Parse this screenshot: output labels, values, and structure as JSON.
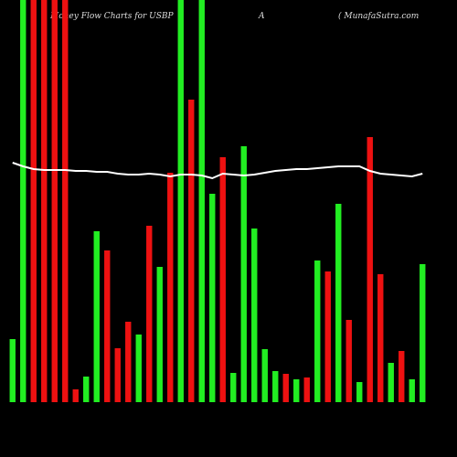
{
  "chart_data": {
    "type": "bar",
    "title": "Money Flow  Charts for USBP",
    "subtitle": "A",
    "source": "( MunafaSutra.com",
    "ylim": [
      0,
      440
    ],
    "background": "#000000",
    "line_color": "#ffffff",
    "series": [
      {
        "name": "Money Flow",
        "values": [
          69,
          440,
          440,
          440,
          440,
          440,
          14,
          28,
          187,
          166,
          59,
          88,
          74,
          193,
          148,
          251,
          440,
          331,
          440,
          228,
          268,
          32,
          280,
          190,
          58,
          34,
          31,
          25,
          27,
          155,
          143,
          217,
          90,
          22,
          290,
          140,
          43,
          56,
          25,
          151
        ],
        "colors": [
          "#22ee22",
          "#22ee22",
          "#ee1111",
          "#ee1111",
          "#ee1111",
          "#ee1111",
          "#ee1111",
          "#22ee22",
          "#22ee22",
          "#ee1111",
          "#ee1111",
          "#ee1111",
          "#22ee22",
          "#ee1111",
          "#22ee22",
          "#ee1111",
          "#22ee22",
          "#ee1111",
          "#22ee22",
          "#22ee22",
          "#ee1111",
          "#22ee22",
          "#22ee22",
          "#22ee22",
          "#22ee22",
          "#22ee22",
          "#ee1111",
          "#22ee22",
          "#ee1111",
          "#22ee22",
          "#ee1111",
          "#22ee22",
          "#ee1111",
          "#22ee22",
          "#ee1111",
          "#ee1111",
          "#22ee22",
          "#ee1111",
          "#22ee22",
          "#22ee22"
        ]
      },
      {
        "name": "Trend",
        "values": [
          262,
          258,
          255,
          254,
          254,
          254,
          253,
          253,
          252,
          252,
          250,
          249,
          249,
          250,
          249,
          247,
          249,
          249,
          248,
          245,
          250,
          249,
          248,
          249,
          251,
          253,
          254,
          255,
          255,
          256,
          257,
          258,
          258,
          258,
          253,
          250,
          249,
          248,
          247,
          250
        ]
      }
    ]
  }
}
